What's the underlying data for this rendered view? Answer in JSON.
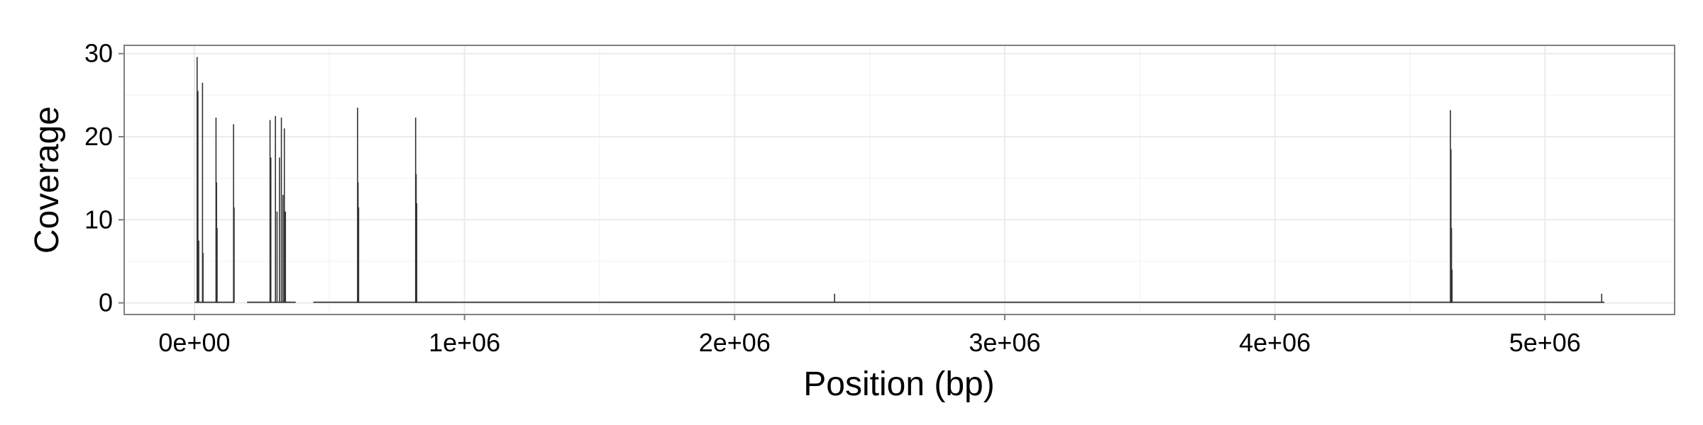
{
  "chart_data": {
    "type": "bar",
    "title": "",
    "xlabel": "Position (bp)",
    "ylabel": "Coverage",
    "xlim": [
      -260000,
      5480000
    ],
    "ylim": [
      -1.4,
      31
    ],
    "x_ticks": [
      0,
      1000000,
      2000000,
      3000000,
      4000000,
      5000000
    ],
    "x_tick_labels": [
      "0e+00",
      "1e+06",
      "2e+06",
      "3e+06",
      "4e+06",
      "5e+06"
    ],
    "y_ticks": [
      0,
      10,
      20,
      30
    ],
    "y_tick_labels": [
      "0",
      "10",
      "20",
      "30"
    ],
    "grid": true,
    "baseline_coverage": 0.15,
    "baseline_segments": [
      [
        0,
        145000
      ],
      [
        195000,
        375000
      ],
      [
        440000,
        4290000
      ],
      [
        4290000,
        5220000
      ]
    ],
    "peaks": [
      {
        "x": 10000,
        "y": 29.6
      },
      {
        "x": 13000,
        "y": 25.5
      },
      {
        "x": 16000,
        "y": 7.5
      },
      {
        "x": 30000,
        "y": 26.5
      },
      {
        "x": 32000,
        "y": 6.0
      },
      {
        "x": 80000,
        "y": 22.3
      },
      {
        "x": 82000,
        "y": 14.5
      },
      {
        "x": 84000,
        "y": 9.0
      },
      {
        "x": 145000,
        "y": 21.5
      },
      {
        "x": 147000,
        "y": 11.5
      },
      {
        "x": 280000,
        "y": 22.0
      },
      {
        "x": 283000,
        "y": 17.5
      },
      {
        "x": 300000,
        "y": 22.5
      },
      {
        "x": 306000,
        "y": 11.0
      },
      {
        "x": 315000,
        "y": 17.5
      },
      {
        "x": 322000,
        "y": 22.3
      },
      {
        "x": 328000,
        "y": 13.0
      },
      {
        "x": 333000,
        "y": 21.0
      },
      {
        "x": 337000,
        "y": 11.0
      },
      {
        "x": 604000,
        "y": 23.5
      },
      {
        "x": 606000,
        "y": 14.5
      },
      {
        "x": 608000,
        "y": 11.5
      },
      {
        "x": 819000,
        "y": 22.3
      },
      {
        "x": 821000,
        "y": 15.5
      },
      {
        "x": 823000,
        "y": 12.0
      },
      {
        "x": 2370000,
        "y": 1.1
      },
      {
        "x": 4650000,
        "y": 23.2
      },
      {
        "x": 4652000,
        "y": 18.5
      },
      {
        "x": 4654000,
        "y": 9.0
      },
      {
        "x": 4656000,
        "y": 4.0
      },
      {
        "x": 5210000,
        "y": 1.1
      }
    ]
  }
}
